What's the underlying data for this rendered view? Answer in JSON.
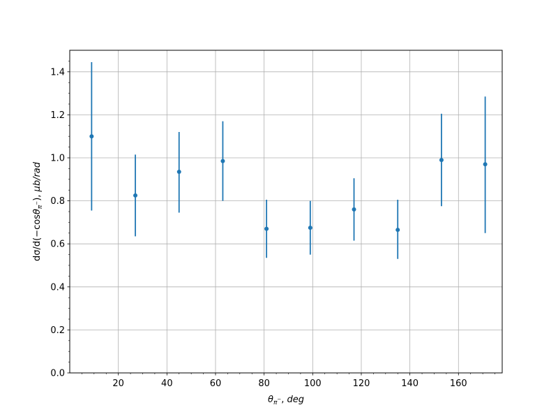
{
  "chart_data": {
    "type": "scatter",
    "title": "",
    "xlabel": "θπ⁻, deg",
    "ylabel": "dσ/d(−cosθπ⁻), μb/rad",
    "xlim": [
      0,
      178
    ],
    "ylim": [
      0.0,
      1.5
    ],
    "x_ticks": [
      20,
      40,
      60,
      80,
      100,
      120,
      140,
      160
    ],
    "x_tick_labels": [
      "20",
      "40",
      "60",
      "80",
      "100",
      "120",
      "140",
      "160"
    ],
    "y_ticks": [
      0.0,
      0.2,
      0.4,
      0.6,
      0.8,
      1.0,
      1.2,
      1.4
    ],
    "y_tick_labels": [
      "0.0",
      "0.2",
      "0.4",
      "0.6",
      "0.8",
      "1.0",
      "1.2",
      "1.4"
    ],
    "x_minor_step": 5,
    "y_minor_step": 0.05,
    "grid": true,
    "legend": "none",
    "color": "#1f77b4",
    "series": [
      {
        "x": [
          9,
          27,
          45,
          63,
          81,
          99,
          117,
          135,
          153,
          171
        ],
        "y": [
          1.1,
          0.825,
          0.935,
          0.985,
          0.67,
          0.675,
          0.76,
          0.665,
          0.99,
          0.97
        ],
        "yerr_low": [
          0.755,
          0.635,
          0.745,
          0.8,
          0.535,
          0.55,
          0.615,
          0.53,
          0.775,
          0.65
        ],
        "yerr_high": [
          1.445,
          1.015,
          1.12,
          1.17,
          0.805,
          0.8,
          0.905,
          0.805,
          1.205,
          1.285
        ]
      }
    ]
  }
}
